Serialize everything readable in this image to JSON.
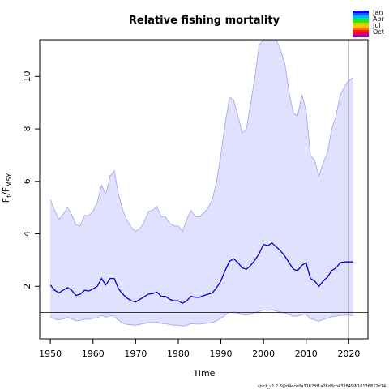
{
  "chart_data": {
    "type": "line",
    "title": "Relative fishing mortality",
    "xlabel": "Time",
    "ylabel_main": "F",
    "ylabel_sub_t": "t",
    "ylabel_sep": "/F",
    "ylabel_sub_msy": "MSY",
    "xlim": [
      1947.5,
      2024.5
    ],
    "ylim": [
      0,
      11.4
    ],
    "xticks": [
      1950,
      1960,
      1970,
      1980,
      1990,
      2000,
      2010,
      2020
    ],
    "yticks": [
      2,
      4,
      6,
      8,
      10
    ],
    "reference_line": 1,
    "vertical_line_x": 2020,
    "legend_labels": [
      "Jan",
      "Apr",
      "Jul",
      "Oct"
    ],
    "footnote": "spict_v1.2.8@d9ece0a31623f1a26d3cb4328499f16136822d14",
    "colors": {
      "median": "#0000cc",
      "band_fill": "#e0e0ff",
      "band_edge": "#a0a0ee",
      "ref_line": "#000000",
      "vline": "#b0b0b0"
    },
    "series": [
      {
        "role": "upper",
        "x": [
          1950,
          1951,
          1952,
          1953,
          1954,
          1955,
          1956,
          1957,
          1958,
          1959,
          1960,
          1961,
          1962,
          1963,
          1964,
          1965,
          1966,
          1967,
          1968,
          1969,
          1970,
          1971,
          1972,
          1973,
          1974,
          1975,
          1976,
          1977,
          1978,
          1979,
          1980,
          1981,
          1982,
          1983,
          1984,
          1985,
          1986,
          1987,
          1988,
          1989,
          1990,
          1991,
          1992,
          1993,
          1994,
          1995,
          1996,
          1997,
          1998,
          1999,
          2000,
          2001,
          2002,
          2003,
          2004,
          2005,
          2006,
          2007,
          2008,
          2009,
          2010,
          2011,
          2012,
          2013,
          2014,
          2015,
          2016,
          2017,
          2018,
          2019,
          2020,
          2021
        ],
        "values": [
          5.3,
          4.9,
          4.55,
          4.75,
          5.0,
          4.75,
          4.35,
          4.3,
          4.7,
          4.7,
          4.85,
          5.2,
          5.85,
          5.5,
          6.2,
          6.4,
          5.5,
          4.9,
          4.5,
          4.25,
          4.1,
          4.2,
          4.45,
          4.85,
          4.9,
          5.05,
          4.65,
          4.65,
          4.4,
          4.3,
          4.3,
          4.1,
          4.55,
          4.9,
          4.65,
          4.65,
          4.8,
          5.0,
          5.3,
          6.0,
          7.0,
          8.2,
          9.2,
          9.1,
          8.5,
          7.85,
          8.0,
          9.0,
          10.0,
          11.2,
          11.4,
          11.4,
          11.4,
          11.4,
          11.0,
          10.5,
          9.4,
          8.6,
          8.5,
          9.3,
          8.7,
          7.0,
          6.8,
          6.2,
          6.7,
          7.1,
          8.0,
          8.5,
          9.3,
          9.6,
          9.85,
          9.95
        ]
      },
      {
        "role": "median",
        "x": [
          1950,
          1951,
          1952,
          1953,
          1954,
          1955,
          1956,
          1957,
          1958,
          1959,
          1960,
          1961,
          1962,
          1963,
          1964,
          1965,
          1966,
          1967,
          1968,
          1969,
          1970,
          1971,
          1972,
          1973,
          1974,
          1975,
          1976,
          1977,
          1978,
          1979,
          1980,
          1981,
          1982,
          1983,
          1984,
          1985,
          1986,
          1987,
          1988,
          1989,
          1990,
          1991,
          1992,
          1993,
          1994,
          1995,
          1996,
          1997,
          1998,
          1999,
          2000,
          2001,
          2002,
          2003,
          2004,
          2005,
          2006,
          2007,
          2008,
          2009,
          2010,
          2011,
          2012,
          2013,
          2014,
          2015,
          2016,
          2017,
          2018,
          2019,
          2020,
          2021
        ],
        "values": [
          2.05,
          1.85,
          1.75,
          1.85,
          1.95,
          1.85,
          1.65,
          1.7,
          1.85,
          1.82,
          1.9,
          2.0,
          2.3,
          2.05,
          2.3,
          2.3,
          1.9,
          1.7,
          1.55,
          1.45,
          1.4,
          1.5,
          1.6,
          1.7,
          1.72,
          1.78,
          1.62,
          1.62,
          1.5,
          1.45,
          1.45,
          1.35,
          1.45,
          1.62,
          1.58,
          1.58,
          1.65,
          1.7,
          1.75,
          1.95,
          2.2,
          2.6,
          2.95,
          3.05,
          2.9,
          2.7,
          2.65,
          2.8,
          3.0,
          3.25,
          3.6,
          3.55,
          3.65,
          3.5,
          3.35,
          3.15,
          2.9,
          2.65,
          2.6,
          2.8,
          2.9,
          2.3,
          2.2,
          2.0,
          2.2,
          2.35,
          2.6,
          2.7,
          2.9,
          2.93,
          2.93,
          2.93
        ]
      },
      {
        "role": "lower",
        "x": [
          1950,
          1951,
          1952,
          1953,
          1954,
          1955,
          1956,
          1957,
          1958,
          1959,
          1960,
          1961,
          1962,
          1963,
          1964,
          1965,
          1966,
          1967,
          1968,
          1969,
          1970,
          1971,
          1972,
          1973,
          1974,
          1975,
          1976,
          1977,
          1978,
          1979,
          1980,
          1981,
          1982,
          1983,
          1984,
          1985,
          1986,
          1987,
          1988,
          1989,
          1990,
          1991,
          1992,
          1993,
          1994,
          1995,
          1996,
          1997,
          1998,
          1999,
          2000,
          2001,
          2002,
          2003,
          2004,
          2005,
          2006,
          2007,
          2008,
          2009,
          2010,
          2011,
          2012,
          2013,
          2014,
          2015,
          2016,
          2017,
          2018,
          2019,
          2020,
          2021
        ],
        "values": [
          0.85,
          0.75,
          0.72,
          0.76,
          0.82,
          0.76,
          0.68,
          0.7,
          0.74,
          0.74,
          0.78,
          0.8,
          0.9,
          0.82,
          0.88,
          0.86,
          0.7,
          0.6,
          0.55,
          0.53,
          0.52,
          0.55,
          0.58,
          0.62,
          0.62,
          0.64,
          0.58,
          0.58,
          0.54,
          0.52,
          0.52,
          0.48,
          0.52,
          0.58,
          0.56,
          0.56,
          0.58,
          0.6,
          0.62,
          0.68,
          0.78,
          0.9,
          1.0,
          1.02,
          0.98,
          0.92,
          0.9,
          0.94,
          1.0,
          1.04,
          1.1,
          1.08,
          1.1,
          1.06,
          1.02,
          0.98,
          0.92,
          0.86,
          0.86,
          0.92,
          0.94,
          0.76,
          0.72,
          0.66,
          0.74,
          0.78,
          0.84,
          0.86,
          0.9,
          0.9,
          0.9,
          0.88
        ]
      }
    ]
  }
}
